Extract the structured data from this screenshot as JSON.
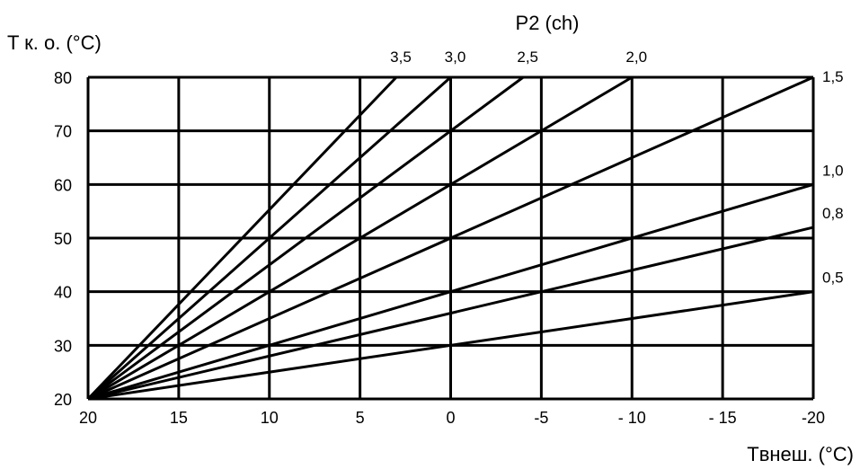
{
  "chart_data": {
    "type": "line",
    "title": "P2 (ch)",
    "ylabel": "T к. о. (°C)",
    "xlabel": "Tвнеш. (°C)",
    "xlim": [
      20,
      -20
    ],
    "ylim": [
      20,
      80
    ],
    "x_ticks": [
      20,
      15,
      10,
      5,
      0,
      -5,
      -10,
      -15,
      -20
    ],
    "x_tick_labels": [
      "20",
      "15",
      "10",
      "5",
      "0",
      "-5",
      "- 10",
      "- 15",
      "-20"
    ],
    "y_ticks": [
      20,
      30,
      40,
      50,
      60,
      70,
      80
    ],
    "y_tick_labels": [
      "20",
      "30",
      "40",
      "50",
      "60",
      "70",
      "80"
    ],
    "grid": true,
    "series": [
      {
        "name": "3,5",
        "x": [
          20,
          3
        ],
        "y": [
          20,
          80
        ]
      },
      {
        "name": "3,0",
        "x": [
          20,
          0
        ],
        "y": [
          20,
          80
        ]
      },
      {
        "name": "2,5",
        "x": [
          20,
          -4
        ],
        "y": [
          20,
          80
        ]
      },
      {
        "name": "2,0",
        "x": [
          20,
          -10
        ],
        "y": [
          20,
          80
        ]
      },
      {
        "name": "1,5",
        "x": [
          20,
          -20
        ],
        "y": [
          20,
          80
        ]
      },
      {
        "name": "1,0",
        "x": [
          20,
          -20
        ],
        "y": [
          20,
          60
        ]
      },
      {
        "name": "0,8",
        "x": [
          20,
          -20
        ],
        "y": [
          20,
          52
        ]
      },
      {
        "name": "0,5",
        "x": [
          20,
          -20
        ],
        "y": [
          20,
          40
        ]
      }
    ],
    "series_label_positions": [
      "top",
      "top",
      "top",
      "top",
      "right",
      "right",
      "right",
      "right"
    ],
    "line_color": "#000000",
    "grid_color": "#000000"
  }
}
